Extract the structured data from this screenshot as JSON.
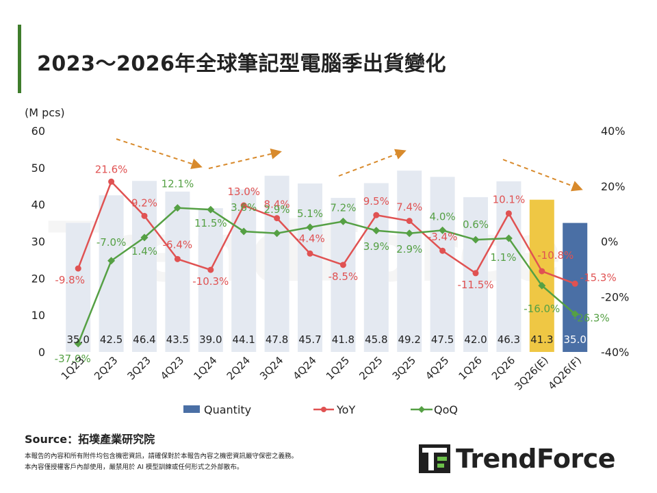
{
  "title": "2023～2026年全球筆記型電腦季出貨變化",
  "colors": {
    "accent": "#3f7d2c",
    "bar": "#e4e9f1",
    "bar_estimate": "#efc744",
    "bar_forecast": "#4a6fa5",
    "yoy": "#e05252",
    "qoq": "#55a044",
    "trend_arrow": "#d88a2c"
  },
  "source": "Source：拓墣產業研究院",
  "notes": [
    "本報告的內容和所有附件均包含機密資訊，請確保對於本報告內容之機密資訊嚴守保密之義務。",
    "本內容僅授權客戶內部使用，嚴禁用於 AI 模型訓練或任何形式之外部散布。"
  ],
  "logo": {
    "text": "TrendForce"
  },
  "watermark": "TrendForce",
  "chart_data": {
    "type": "bar",
    "categories": [
      "1Q23",
      "2Q23",
      "3Q23",
      "4Q23",
      "1Q24",
      "2Q24",
      "3Q24",
      "4Q24",
      "1Q25",
      "2Q25",
      "3Q25",
      "4Q25",
      "1Q26",
      "2Q26",
      "3Q26(E)",
      "4Q26(F)"
    ],
    "series": [
      {
        "name": "Quantity",
        "type": "bar",
        "axis": "left",
        "values": [
          35.0,
          42.5,
          46.4,
          43.5,
          39.0,
          44.1,
          47.8,
          45.7,
          41.8,
          45.8,
          49.2,
          47.5,
          42.0,
          46.3,
          41.3,
          35.0
        ],
        "labels": [
          "35.0",
          "42.5",
          "46.4",
          "43.5",
          "39.0",
          "44.1",
          "47.8",
          "45.7",
          "41.8",
          "45.8",
          "49.2",
          "47.5",
          "42.0",
          "46.3",
          "41.3",
          "35.0"
        ]
      },
      {
        "name": "YoY",
        "type": "line",
        "axis": "right",
        "values": [
          -9.8,
          21.6,
          9.2,
          -6.4,
          -10.3,
          13.0,
          8.4,
          -4.4,
          -8.5,
          9.5,
          7.4,
          -3.4,
          -11.5,
          10.1,
          -10.8,
          -15.3
        ],
        "labels": [
          "-9.8%",
          "21.6%",
          "9.2%",
          "-6.4%",
          "-10.3%",
          "13.0%",
          "8.4%",
          "-4.4%",
          "-8.5%",
          "9.5%",
          "7.4%",
          "-3.4%",
          "-11.5%",
          "10.1%",
          "-10.8%",
          "-15.3%"
        ]
      },
      {
        "name": "QoQ",
        "type": "line",
        "axis": "right",
        "values": [
          -37.0,
          -7.0,
          1.4,
          12.1,
          11.5,
          3.6,
          2.9,
          5.1,
          7.2,
          3.9,
          2.9,
          4.0,
          0.6,
          1.1,
          -16.0,
          -26.3
        ],
        "labels": [
          "-37.0%",
          "-7.0%",
          "1.4%",
          "12.1%",
          "11.5%",
          "3.6%",
          "2.9%",
          "5.1%",
          "7.2%",
          "3.9%",
          "2.9%",
          "4.0%",
          "0.6%",
          "1.1%",
          "-16.0%",
          "-26.3%"
        ]
      }
    ],
    "left_axis": {
      "unit": "(M pcs)",
      "ylim": [
        0,
        60
      ],
      "ticks": [
        "0",
        "10",
        "20",
        "30",
        "40",
        "50",
        "60"
      ]
    },
    "right_axis": {
      "ylim": [
        -40,
        40
      ],
      "ticks": [
        "-40%",
        "-20%",
        "0%",
        "20%",
        "40%"
      ]
    },
    "legend": [
      "Quantity",
      "YoY",
      "QoQ"
    ],
    "legend_position": "bottom",
    "grid": false
  }
}
